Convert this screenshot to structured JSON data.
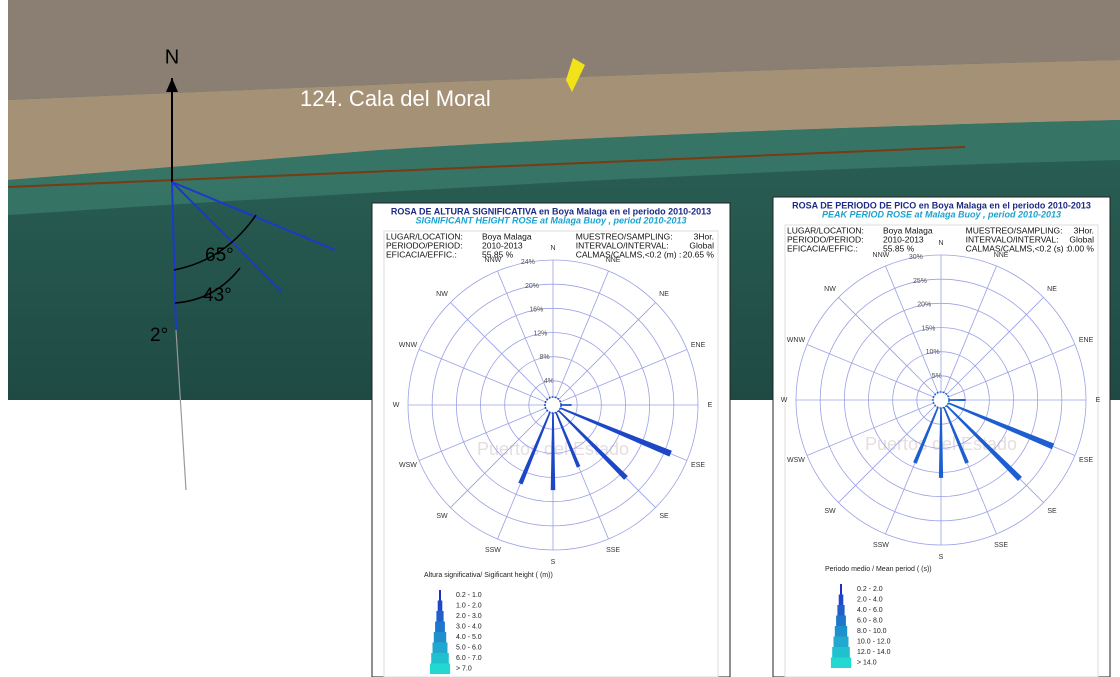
{
  "map": {
    "north": "N",
    "place": "124. Cala del Moral",
    "angles": [
      "65°",
      "43°",
      "2°"
    ]
  },
  "chart_data": [
    {
      "type": "rose",
      "title": "ROSA DE ALTURA SIGNIFICATIVA en Boya Malaga en el periodo 2010-2013",
      "subtitle": "SIGNIFICANT HEIGHT ROSE at Malaga Buoy , period 2010-2013",
      "info": [
        [
          "LUGAR/LOCATION:",
          "Boya Malaga"
        ],
        [
          "PERIODO/PERIOD:",
          "2010-2013"
        ],
        [
          "EFICACIA/EFFIC.:",
          "55.85 %"
        ],
        [
          "MUESTREO/SAMPLING:",
          "3Hor."
        ],
        [
          "INTERVALO/INTERVAL:",
          "Global"
        ],
        [
          "CALMAS/CALMS,<0.2 (m) :",
          "20.65 %"
        ]
      ],
      "categories": [
        "N",
        "NNE",
        "NE",
        "ENE",
        "E",
        "ESE",
        "SE",
        "SSE",
        "S",
        "SSW",
        "SW",
        "WSW",
        "W",
        "WNW",
        "NW",
        "NNW"
      ],
      "values": [
        1,
        0.5,
        0.5,
        0.5,
        3,
        21,
        17,
        11,
        14,
        14,
        1,
        0.5,
        0.5,
        0.5,
        0.5,
        0.5
      ],
      "color": "#1d47c8",
      "rlim": [
        0,
        24
      ],
      "rticks": [
        {
          "value": 4,
          "label": "4%"
        },
        {
          "value": 8,
          "label": "8%"
        },
        {
          "value": 12,
          "label": "12%"
        },
        {
          "value": 16,
          "label": "16%"
        },
        {
          "value": 20,
          "label": "20%"
        },
        {
          "value": 24,
          "label": "24%"
        }
      ],
      "watermark": "Puertos del Estado",
      "legend_title": "Altura significativa/ Sigificant height  ( (m))",
      "legend_bins": [
        "0.2 - 1.0",
        "1.0 - 2.0",
        "2.0 - 3.0",
        "3.0 - 4.0",
        "4.0 - 5.0",
        "5.0 - 6.0",
        "6.0 - 7.0",
        "> 7.0"
      ]
    },
    {
      "type": "rose",
      "title": "ROSA DE PERIODO DE PICO en Boya Malaga en el periodo 2010-2013",
      "subtitle": "PEAK PERIOD ROSE at Malaga Buoy , period 2010-2013",
      "info": [
        [
          "LUGAR/LOCATION:",
          "Boya Malaga"
        ],
        [
          "PERIODO/PERIOD:",
          "2010-2013"
        ],
        [
          "EFICACIA/EFFIC.:",
          "55.85 %"
        ],
        [
          "MUESTREO/SAMPLING:",
          "3Hor."
        ],
        [
          "INTERVALO/INTERVAL:",
          "Global"
        ],
        [
          "CALMAS/CALMS,<0.2 (s) :",
          "0.00 %"
        ]
      ],
      "categories": [
        "N",
        "NNE",
        "NE",
        "ENE",
        "E",
        "ESE",
        "SE",
        "SSE",
        "S",
        "SSW",
        "SW",
        "WSW",
        "W",
        "WNW",
        "NW",
        "NNW"
      ],
      "values": [
        1,
        0.5,
        0.5,
        1,
        5,
        25,
        23,
        14,
        16,
        14,
        1,
        0.5,
        0.5,
        0.5,
        0.5,
        1
      ],
      "color": "#1d5fd0",
      "rlim": [
        0,
        30
      ],
      "rticks": [
        {
          "value": 5,
          "label": "5%"
        },
        {
          "value": 10,
          "label": "10%"
        },
        {
          "value": 15,
          "label": "15%"
        },
        {
          "value": 20,
          "label": "20%"
        },
        {
          "value": 25,
          "label": "25%"
        },
        {
          "value": 30,
          "label": "30%"
        }
      ],
      "watermark": "Puertos del Estado",
      "legend_title": "Periodo medio    / Mean period     ( (s))",
      "legend_bins": [
        "0.2 - 2.0",
        "2.0 - 4.0",
        "4.0 - 6.0",
        "6.0 - 8.0",
        "8.0 - 10.0",
        "10.0 - 12.0",
        "12.0 - 14.0",
        "> 14.0"
      ]
    }
  ]
}
